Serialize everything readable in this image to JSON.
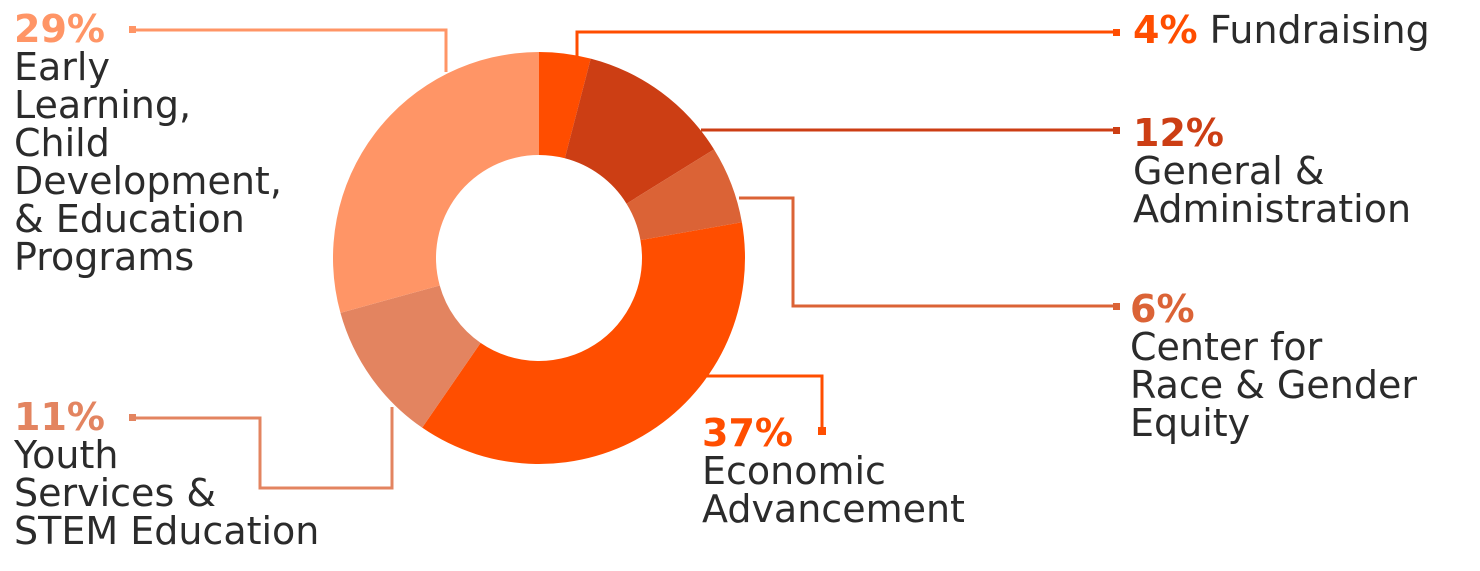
{
  "chart_data": {
    "type": "pie",
    "donut": true,
    "slices": [
      {
        "name": "Fundraising",
        "value": 4,
        "label": "4%",
        "color": "#FF4D00"
      },
      {
        "name": "General & Administration",
        "value": 12,
        "label": "12%",
        "color": "#CC3E14"
      },
      {
        "name": "Center for Race & Gender Equity",
        "value": 6,
        "label": "6%",
        "color": "#DB6336"
      },
      {
        "name": "Economic Advancement",
        "value": 37,
        "label": "37%",
        "color": "#FF4E00"
      },
      {
        "name": "Youth Services & STEM Education",
        "value": 11,
        "label": "11%",
        "color": "#E38460"
      },
      {
        "name": "Early Learning, Child Development, & Education Programs",
        "value": 29,
        "label": "29%",
        "color": "#FF9566"
      }
    ]
  },
  "labels": {
    "fundraising": {
      "pct": "4%",
      "name": "Fundraising"
    },
    "general": {
      "pct": "12%",
      "name": "General &\nAdministration"
    },
    "center": {
      "pct": "6%",
      "name": "Center for\nRace & Gender\nEquity"
    },
    "economic": {
      "pct": "37%",
      "name": "Economic\nAdvancement"
    },
    "youth": {
      "pct": "11%",
      "name": "Youth\nServices &\nSTEM Education"
    },
    "early": {
      "pct": "29%",
      "name": "Early\nLearning,\nChild\nDevelopment,\n& Education\nPrograms"
    }
  }
}
